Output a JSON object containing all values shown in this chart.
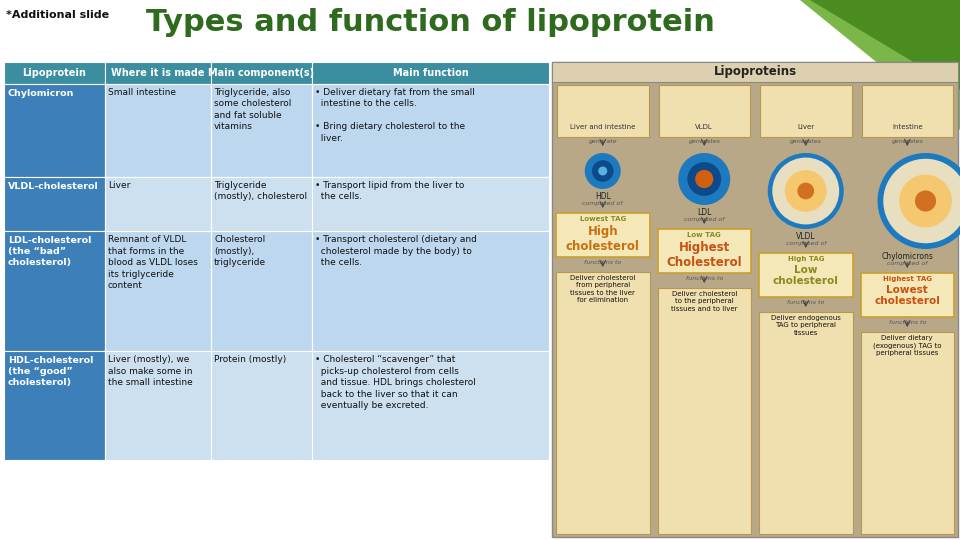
{
  "title": "Types and function of lipoprotein",
  "subtitle": "*Additional slide",
  "bg_color": "#ffffff",
  "table_headers": [
    "Lipoprotein",
    "Where it is made",
    "Main component(s)",
    "Main function"
  ],
  "header_bg": "#3a8ea0",
  "header_text_color": "#ffffff",
  "col1_bg": "#3d7fb8",
  "col1_text": "#ffffff",
  "row_bg_even": "#bdd8ee",
  "row_bg_odd": "#cce0f0",
  "row_text": "#111111",
  "rows": [
    {
      "lipoprotein": "Chylomicron",
      "where": "Small intestine",
      "components": "Triglyceride, also\nsome cholesterol\nand fat soluble\nvitamins",
      "function": "• Deliver dietary fat from the small\n  intestine to the cells.\n\n• Bring dietary cholesterol to the\n  liver."
    },
    {
      "lipoprotein": "VLDL-cholesterol",
      "where": "Liver",
      "components": "Triglyceride\n(mostly), cholesterol",
      "function": "• Transport lipid from the liver to\n  the cells."
    },
    {
      "lipoprotein": "LDL-cholesterol\n(the “bad”\ncholesterol)",
      "where": "Remnant of VLDL\nthat forms in the\nblood as VLDL loses\nits triglyceride\ncontent",
      "components": "Cholesterol\n(mostly),\ntriglyceride",
      "function": "• Transport cholesterol (dietary and\n  cholesterol made by the body) to\n  the cells."
    },
    {
      "lipoprotein": "HDL-cholesterol\n(the “good”\ncholesterol)",
      "where": "Liver (mostly), we\nalso make some in\nthe small intestine",
      "components": "Protein (mostly)",
      "function": "• Cholesterol “scavenger” that\n  picks-up cholesterol from cells\n  and tissue. HDL brings cholesterol\n  back to the liver so that it can\n  eventually be excreted."
    }
  ],
  "title_color": "#2e6b1e",
  "title_fontsize": 22,
  "subtitle_fontsize": 8,
  "green1": "#7ab648",
  "green2": "#4a8c20",
  "right_panel_bg": "#b8a888",
  "right_panel_title": "Lipoproteins",
  "right_panel_title_bg": "#ddd0b0",
  "organ_box_bg": "#f0e0b0",
  "organ_box_border": "#b89848",
  "tag_box_bg": "#f5e8b8",
  "tag_box_border": "#c8a030",
  "fn_box_bg": "#f0e0b0",
  "fn_box_border": "#b89848",
  "lipoprotein_items": [
    {
      "label": "HDL",
      "source": "Liver and intestine",
      "generates": "generate",
      "tag_top": "Lowest TAG",
      "tag_top_color": "#8c8820",
      "tag_main": "High\ncholesterol",
      "tag_main_color": "#c87010",
      "function": "Deliver cholesterol\nfrom peripheral\ntissues to the liver\nfor elimination",
      "circle_size": "small"
    },
    {
      "label": "LDL",
      "source": "VLDL",
      "generates": "generates",
      "tag_top": "Low TAG",
      "tag_top_color": "#8c8820",
      "tag_main": "Highest\nCholesterol",
      "tag_main_color": "#c85010",
      "function": "Deliver cholesterol\nto the peripheral\ntissues and to liver",
      "circle_size": "medium"
    },
    {
      "label": "VLDL",
      "source": "Liver",
      "generates": "generates",
      "tag_top": "High TAG",
      "tag_top_color": "#8c8820",
      "tag_main": "Low\ncholesterol",
      "tag_main_color": "#8c8820",
      "function": "Deliver endogenous\nTAG to peripheral\ntissues",
      "circle_size": "large"
    },
    {
      "label": "Chylomicrons",
      "source": "Intestine",
      "generates": "generates",
      "tag_top": "Highest TAG",
      "tag_top_color": "#c85010",
      "tag_main": "Lowest\ncholesterol",
      "tag_main_color": "#c85010",
      "function": "Deliver dietary\n(exogenous) TAG to\nperipheral tissues",
      "circle_size": "xlarge"
    }
  ]
}
